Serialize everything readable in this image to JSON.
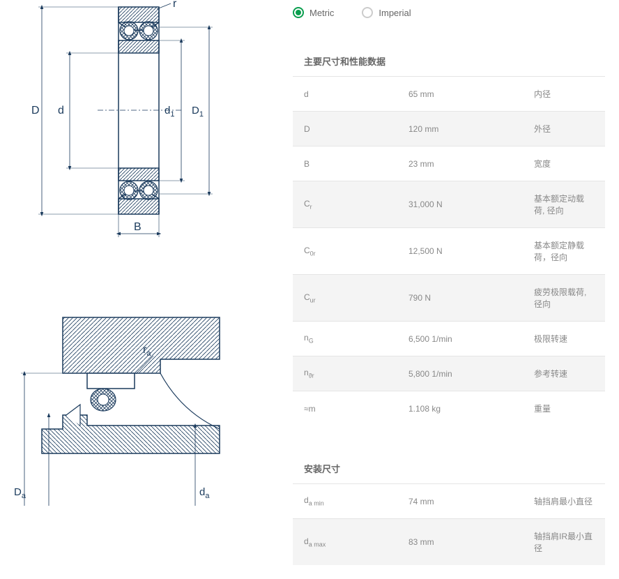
{
  "units": {
    "metric": "Metric",
    "imperial": "Imperial"
  },
  "section1": {
    "title": "主要尺寸和性能数据",
    "rows": [
      {
        "sym": "d",
        "sub": "",
        "val": "65 mm",
        "desc": "内径"
      },
      {
        "sym": "D",
        "sub": "",
        "val": "120 mm",
        "desc": "外径"
      },
      {
        "sym": "B",
        "sub": "",
        "val": "23 mm",
        "desc": "宽度"
      },
      {
        "sym": "C",
        "sub": "r",
        "val": "31,000 N",
        "desc": "基本额定动载荷, 径向"
      },
      {
        "sym": "C",
        "sub": "0r",
        "val": "12,500 N",
        "desc": "基本额定静载荷，径向"
      },
      {
        "sym": "C",
        "sub": "ur",
        "val": "790 N",
        "desc": "疲劳极限载荷, 径向"
      },
      {
        "sym": "n",
        "sub": "G",
        "val": "6,500 1/min",
        "desc": "极限转速"
      },
      {
        "sym": "n",
        "sub": "ϑr",
        "val": "5,800 1/min",
        "desc": "参考转速"
      },
      {
        "sym": "≈m",
        "sub": "",
        "val": "1.108 kg",
        "desc": "重量"
      }
    ]
  },
  "section2": {
    "title": "安装尺寸",
    "rows": [
      {
        "sym": "d",
        "sub": "a min",
        "val": "74 mm",
        "desc": "轴挡肩最小直径"
      },
      {
        "sym": "d",
        "sub": "a max",
        "val": "83 mm",
        "desc": "轴挡肩IR最小直径"
      }
    ]
  },
  "colors": {
    "accent": "#0a9e4e",
    "line": "#1a3a5c",
    "hatch": "#1a3a5c"
  }
}
